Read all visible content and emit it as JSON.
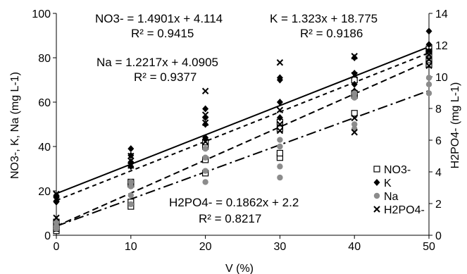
{
  "chart_data": {
    "type": "scatter",
    "xlabel": "V (%)",
    "ylabel_left": "NO3-, K, Na (mg L-1)",
    "ylabel_right": "H2PO4- (mg L-1)",
    "x_ticks": [
      0,
      10,
      20,
      30,
      40,
      50
    ],
    "y_left_ticks": [
      0,
      20,
      40,
      60,
      80,
      100
    ],
    "y_right_ticks": [
      0,
      2,
      4,
      6,
      8,
      10,
      12,
      14
    ],
    "xlim": [
      0,
      50
    ],
    "ylim_left": [
      0,
      100
    ],
    "ylim_right": [
      0,
      14
    ],
    "grid": false,
    "legend_position": "right",
    "series": [
      {
        "name": "NO3-",
        "axis": "left",
        "marker": "square-open",
        "color": "#000000",
        "points": [
          [
            0,
            2
          ],
          [
            0,
            3
          ],
          [
            0,
            5
          ],
          [
            0,
            6
          ],
          [
            10,
            13
          ],
          [
            10,
            15
          ],
          [
            10,
            23
          ],
          [
            10,
            24
          ],
          [
            20,
            28
          ],
          [
            20,
            34
          ],
          [
            20,
            40
          ],
          [
            20,
            42
          ],
          [
            30,
            35
          ],
          [
            30,
            37
          ],
          [
            30,
            48
          ],
          [
            30,
            51
          ],
          [
            40,
            55
          ],
          [
            40,
            63
          ],
          [
            40,
            64
          ],
          [
            40,
            70
          ],
          [
            50,
            77
          ],
          [
            50,
            79
          ],
          [
            50,
            82
          ],
          [
            50,
            84
          ]
        ]
      },
      {
        "name": "K",
        "axis": "left",
        "marker": "diamond",
        "color": "#000000",
        "points": [
          [
            0,
            15
          ],
          [
            0,
            17
          ],
          [
            0,
            18
          ],
          [
            10,
            31
          ],
          [
            10,
            33
          ],
          [
            10,
            36
          ],
          [
            10,
            39
          ],
          [
            20,
            44
          ],
          [
            20,
            50
          ],
          [
            20,
            53
          ],
          [
            20,
            57
          ],
          [
            30,
            53
          ],
          [
            30,
            60
          ],
          [
            30,
            70
          ],
          [
            30,
            71
          ],
          [
            40,
            65
          ],
          [
            40,
            68
          ],
          [
            40,
            73
          ],
          [
            40,
            80
          ],
          [
            50,
            80
          ],
          [
            50,
            83
          ],
          [
            50,
            86
          ],
          [
            50,
            92
          ]
        ]
      },
      {
        "name": "Na",
        "axis": "left",
        "marker": "circle",
        "color": "#8c8c8c",
        "points": [
          [
            0,
            3
          ],
          [
            0,
            4
          ],
          [
            0,
            6
          ],
          [
            10,
            14
          ],
          [
            10,
            18
          ],
          [
            10,
            22
          ],
          [
            10,
            24
          ],
          [
            20,
            24
          ],
          [
            20,
            29
          ],
          [
            20,
            35
          ],
          [
            20,
            39
          ],
          [
            30,
            26
          ],
          [
            30,
            31
          ],
          [
            30,
            40
          ],
          [
            30,
            43
          ],
          [
            40,
            48
          ],
          [
            40,
            50
          ],
          [
            40,
            62
          ],
          [
            40,
            64
          ],
          [
            50,
            64
          ],
          [
            50,
            68
          ],
          [
            50,
            71
          ],
          [
            50,
            81
          ]
        ]
      },
      {
        "name": "H2PO4-",
        "axis": "right",
        "marker": "x",
        "color": "#000000",
        "points": [
          [
            0,
            1.1
          ],
          [
            0,
            2.3
          ],
          [
            0,
            2.6
          ],
          [
            10,
            4.4
          ],
          [
            10,
            4.7
          ],
          [
            10,
            5.0
          ],
          [
            20,
            5.9
          ],
          [
            20,
            7.1
          ],
          [
            20,
            7.6
          ],
          [
            20,
            9.1
          ],
          [
            30,
            6.6
          ],
          [
            30,
            7.0
          ],
          [
            30,
            7.9
          ],
          [
            30,
            10.9
          ],
          [
            40,
            6.5
          ],
          [
            40,
            7.4
          ],
          [
            40,
            10.1
          ],
          [
            40,
            11.3
          ],
          [
            50,
            10.7
          ],
          [
            50,
            11.1
          ],
          [
            50,
            11.4
          ],
          [
            50,
            11.6
          ]
        ]
      }
    ],
    "trendlines": [
      {
        "series": "K",
        "axis": "left",
        "slope": 1.323,
        "intercept": 18.775,
        "style": "solid"
      },
      {
        "series": "NO3-",
        "axis": "left",
        "slope": 1.4901,
        "intercept": 4.114,
        "style": "dash"
      },
      {
        "series": "Na",
        "axis": "left",
        "slope": 1.2217,
        "intercept": 4.0905,
        "style": "dashdot"
      },
      {
        "series": "H2PO4-",
        "axis": "right",
        "slope": 0.1862,
        "intercept": 2.2,
        "style": "shortdash"
      }
    ],
    "annotations": {
      "no3_eq": "NO3- = 1.4901x + 4.114",
      "no3_r2": "R² = 0.9415",
      "k_eq": "K = 1.323x + 18.775",
      "k_r2": "R² = 0.9186",
      "na_eq": "Na = 1.2217x + 4.0905",
      "na_r2": "R² = 0.9377",
      "h2po4_eq": "H2PO4- = 0.1862x + 2.2",
      "h2po4_r2": "R² = 0.8217"
    },
    "legend": [
      "NO3-",
      "K",
      "Na",
      "H2PO4-"
    ]
  }
}
